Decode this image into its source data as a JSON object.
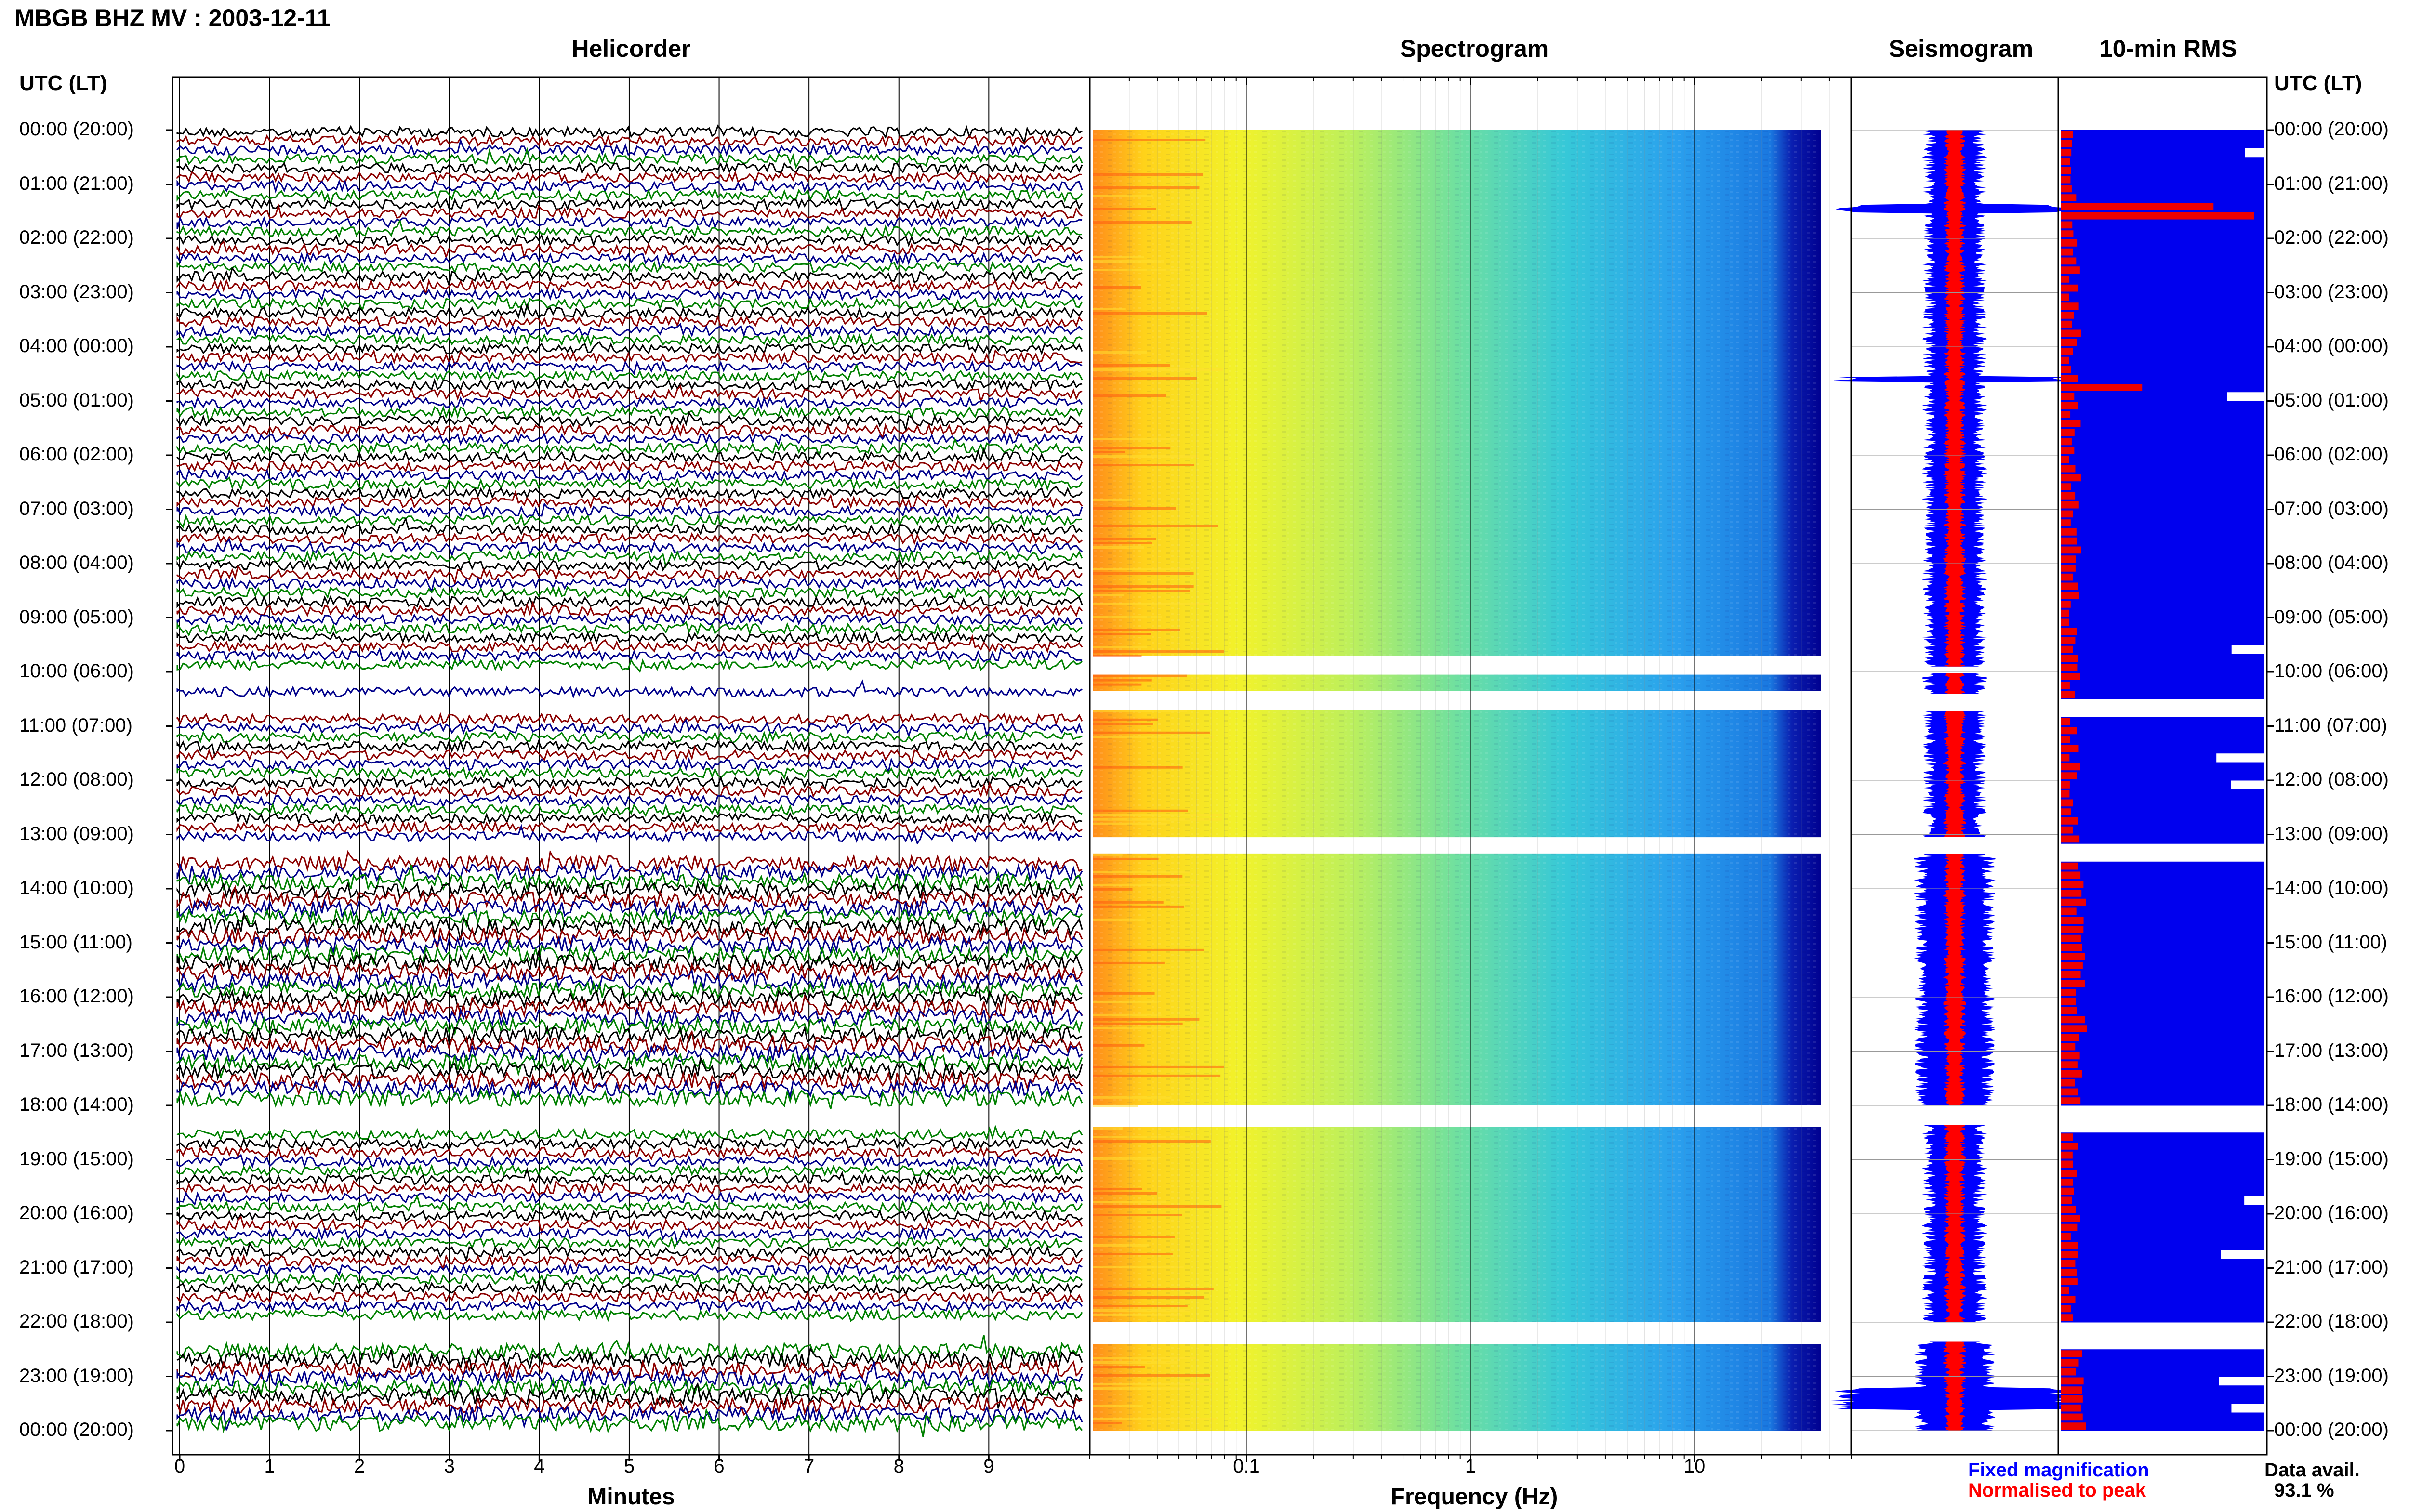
{
  "title": "MBGB BHZ MV : 2003-12-11",
  "panels": {
    "helicorder": "Helicorder",
    "spectrogram": "Spectrogram",
    "seismogram": "Seismogram",
    "rms": "10-min RMS"
  },
  "time_axis_label": "UTC (LT)",
  "time_labels": [
    "00:00 (20:00)",
    "01:00 (21:00)",
    "02:00 (22:00)",
    "03:00 (23:00)",
    "04:00 (00:00)",
    "05:00 (01:00)",
    "06:00 (02:00)",
    "07:00 (03:00)",
    "08:00 (04:00)",
    "09:00 (05:00)",
    "10:00 (06:00)",
    "11:00 (07:00)",
    "12:00 (08:00)",
    "13:00 (09:00)",
    "14:00 (10:00)",
    "15:00 (11:00)",
    "16:00 (12:00)",
    "17:00 (13:00)",
    "18:00 (14:00)",
    "19:00 (15:00)",
    "20:00 (16:00)",
    "21:00 (17:00)",
    "22:00 (18:00)",
    "23:00 (19:00)",
    "00:00 (20:00)"
  ],
  "legend": {
    "fixed": "Fixed magnification",
    "normalised": "Normalised to peak",
    "data_avail_label": "Data avail.",
    "data_avail_value": "93.1 %"
  },
  "colors": {
    "trace_black": "#000000",
    "trace_red": "#8b0000",
    "trace_blue": "#00008b",
    "trace_green": "#008000",
    "fixed_blue": "#0000ff",
    "normalised_red": "#ff0000",
    "rms_blue": "#0000ee",
    "rms_red": "#ee0000"
  },
  "chart_data": [
    {
      "type": "line",
      "panel": "Helicorder",
      "xlabel": "Minutes",
      "x_ticks": [
        0,
        1,
        2,
        3,
        4,
        5,
        6,
        7,
        8,
        9
      ],
      "xlim": [
        0,
        10
      ],
      "trace_colors": [
        "#000000",
        "#8b0000",
        "#00008b",
        "#008000"
      ],
      "data_gaps_hours": [
        [
          9.9,
          10.3
        ],
        [
          10.5,
          10.7
        ],
        [
          13.05,
          13.35
        ],
        [
          18.0,
          18.35
        ],
        [
          22.0,
          22.35
        ]
      ]
    },
    {
      "type": "heatmap",
      "panel": "Spectrogram",
      "xlabel": "Frequency (Hz)",
      "x_scale": "log",
      "x_ticks": [
        "0.1",
        "1",
        "10"
      ],
      "xlim": [
        0.02,
        50
      ],
      "data_gaps_hours": [
        [
          9.7,
          10.05
        ],
        [
          10.35,
          10.7
        ],
        [
          13.05,
          13.35
        ],
        [
          18.0,
          18.4
        ],
        [
          22.0,
          22.4
        ]
      ]
    },
    {
      "type": "line",
      "panel": "Seismogram",
      "series": [
        {
          "name": "Fixed magnification"
        },
        {
          "name": "Normalised to peak"
        }
      ]
    },
    {
      "type": "bar",
      "panel": "10-min RMS",
      "series": [
        {
          "name": "Fixed magnification"
        },
        {
          "name": "Normalised to peak"
        }
      ],
      "red_spikes_hours": [
        [
          1.4,
          0.75
        ],
        [
          1.55,
          0.95
        ],
        [
          4.6,
          0.4
        ]
      ],
      "data_gaps_hours": [
        [
          9.9,
          10.0
        ],
        [
          10.4,
          10.7
        ],
        [
          13.05,
          13.35
        ],
        [
          18.0,
          18.35
        ],
        [
          22.0,
          22.35
        ]
      ]
    }
  ]
}
